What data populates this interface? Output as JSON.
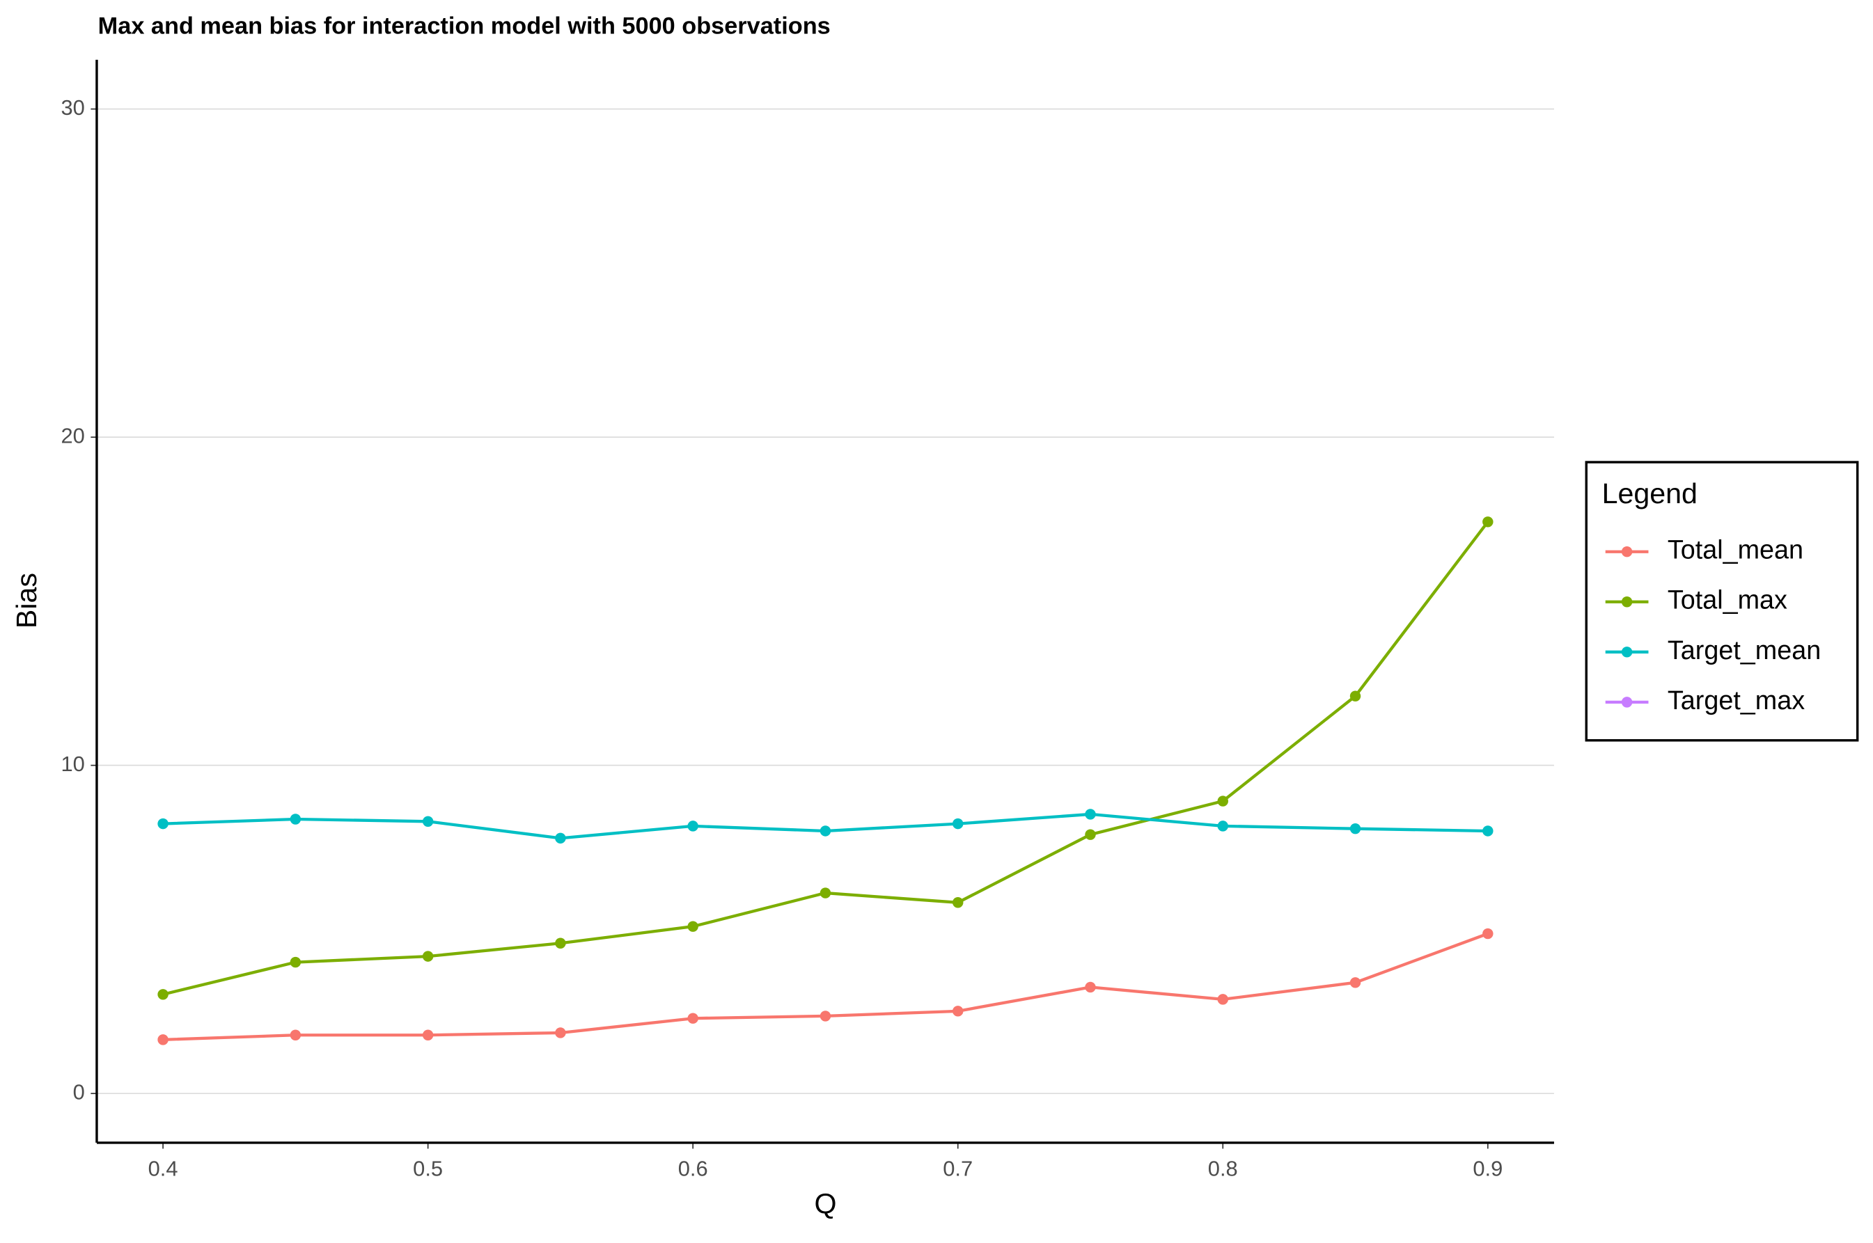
{
  "chart_data": {
    "type": "line",
    "title": "Max and mean bias for interaction model with 5000 observations",
    "x_label": "Q",
    "y_label": "Bias",
    "x": [
      0.4,
      0.45,
      0.5,
      0.55,
      0.6,
      0.65,
      0.7,
      0.75,
      0.8,
      0.85,
      0.9
    ],
    "series": [
      {
        "name": "Total_mean",
        "color": "#F8766D",
        "values": [
          1.64,
          1.78,
          1.78,
          1.85,
          2.29,
          2.36,
          2.51,
          3.24,
          2.87,
          3.38,
          4.87
        ]
      },
      {
        "name": "Total_max",
        "color": "#7CAE00",
        "values": [
          3.02,
          4.0,
          4.18,
          4.58,
          5.09,
          6.11,
          5.82,
          7.89,
          8.91,
          12.11,
          17.42
        ]
      },
      {
        "name": "Target_mean",
        "color": "#00BFC4",
        "values": [
          8.22,
          8.36,
          8.29,
          7.78,
          8.15,
          8.0,
          8.22,
          8.51,
          8.15,
          8.07,
          8.0
        ]
      },
      {
        "name": "Target_max",
        "color": "#C77CFF",
        "values": [
          null,
          null,
          null,
          null,
          null,
          null,
          null,
          null,
          null,
          null,
          null
        ]
      }
    ],
    "legend_title": "Legend",
    "legend": "right",
    "xlim": [
      0.375,
      0.925
    ],
    "xticks": [
      0.4,
      0.5,
      0.6,
      0.7,
      0.8,
      0.9
    ],
    "ylim": [
      -1.5,
      31.5
    ],
    "yticks": [
      0,
      10,
      20,
      30
    ],
    "grid": true
  }
}
